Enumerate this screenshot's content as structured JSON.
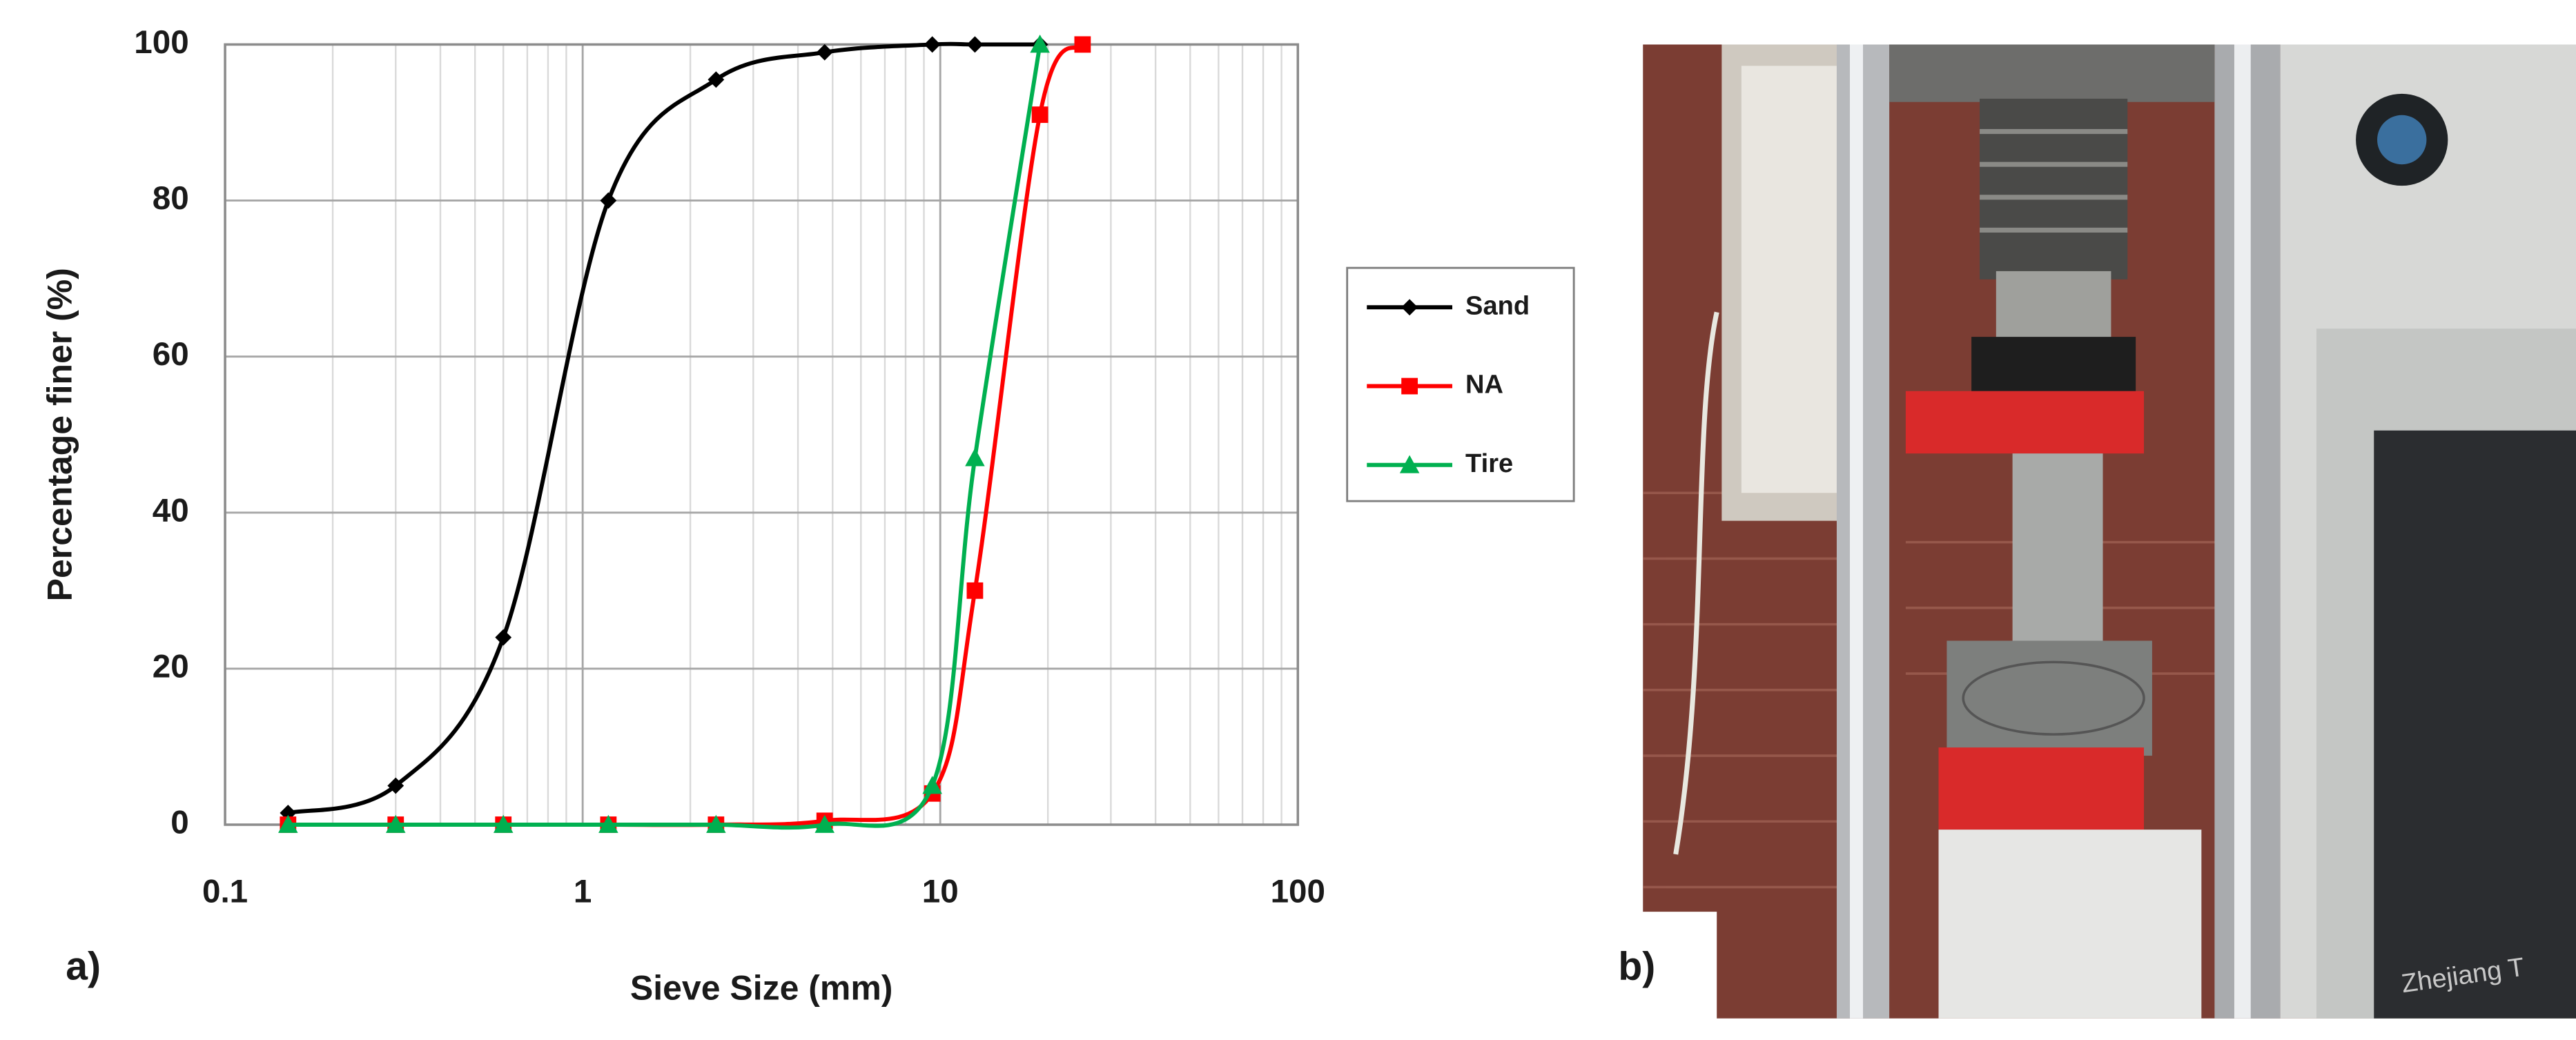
{
  "chart_data": {
    "type": "line",
    "x_label": "Sieve Size (mm)",
    "y_label": "Percentage finer (%)",
    "annotations": [
      "a)"
    ],
    "x": [
      0.15,
      0.3,
      0.6,
      1.18,
      2.36,
      4.75,
      9.5,
      12.5,
      19,
      25
    ],
    "series": [
      {
        "name": "Sand",
        "color": "#000000",
        "marker": "diamond",
        "values": [
          1.5,
          5,
          24,
          80,
          95.5,
          99,
          100,
          100,
          100,
          null
        ]
      },
      {
        "name": "NA",
        "color": "#ff0000",
        "marker": "square",
        "values": [
          0,
          0,
          0,
          0,
          0,
          0.5,
          4,
          30,
          91,
          100
        ]
      },
      {
        "name": "Tire",
        "color": "#00b050",
        "marker": "triangle",
        "values": [
          0,
          0,
          0,
          0,
          0,
          0,
          5,
          47,
          100,
          null
        ]
      }
    ],
    "x_log": true,
    "xlim": [
      0.1,
      100
    ],
    "xticks": [
      0.1,
      1,
      10,
      100
    ],
    "ylim": [
      0,
      100
    ],
    "yticks": [
      0,
      20,
      40,
      60,
      80,
      100
    ],
    "grid": true,
    "minor_grid": true,
    "legend": "right"
  },
  "panel_label": "b)",
  "photo_text": "Zhejiang T"
}
